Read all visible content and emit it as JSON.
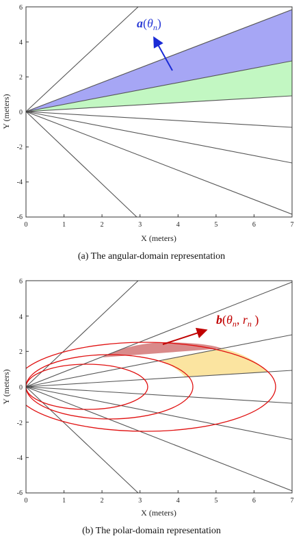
{
  "panel_a": {
    "ylabel": "Y (meters)",
    "xlabel": "X (meters)",
    "x_ticks": [
      "0",
      "1",
      "2",
      "3",
      "4",
      "5",
      "6",
      "7"
    ],
    "y_ticks": [
      "6",
      "4",
      "2",
      "0",
      "-2",
      "-4",
      "-6"
    ],
    "annotation": {
      "vector": "a",
      "arg": "θ",
      "sub": "n"
    },
    "caption": "(a) The angular-domain representation",
    "colors": {
      "blue_fill": "#a6a6f5",
      "green_fill": "#c2f7c2",
      "arrow": "#1a2bd6",
      "ray": "#555555"
    }
  },
  "panel_b": {
    "ylabel": "Y (meters)",
    "xlabel": "X (meters)",
    "x_ticks": [
      "0",
      "1",
      "2",
      "3",
      "4",
      "5",
      "6",
      "7"
    ],
    "y_ticks": [
      "6",
      "4",
      "2",
      "0",
      "-2",
      "-4",
      "-6"
    ],
    "annotation": {
      "vector": "b",
      "arg1": "θ",
      "sub1": "n",
      "arg2": "r",
      "sub2": "n"
    },
    "caption": "(b) The polar-domain representation",
    "colors": {
      "red_fill": "#d98a8a",
      "yellow_fill": "#fbe4a0",
      "ellipse": "#e01010",
      "arrow": "#c00000",
      "ray": "#555555"
    }
  }
}
